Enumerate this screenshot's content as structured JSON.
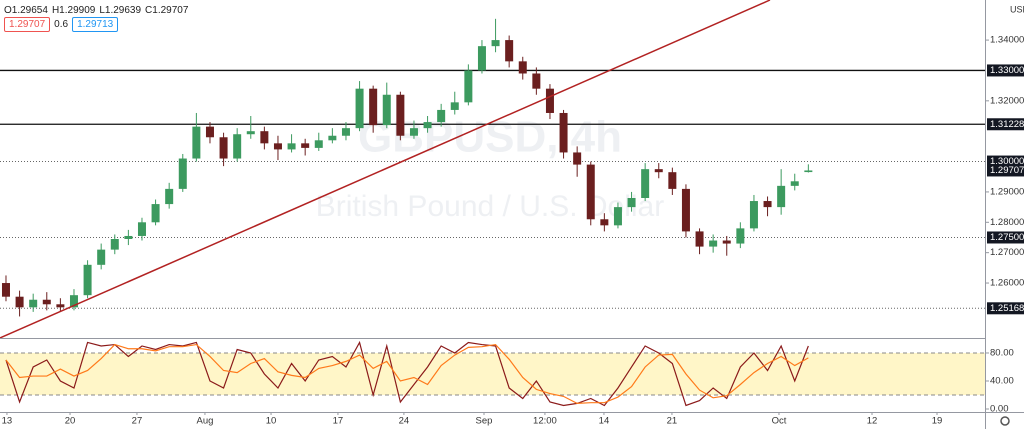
{
  "chart_data": [
    {
      "type": "candlestick",
      "symbol": "GBPUSD, 4h",
      "description": "British Pound / U.S. Dollar",
      "currency": "USD",
      "ohlc_labels": [
        "O",
        "H",
        "L",
        "C"
      ],
      "bid": 1.29707,
      "spread": 0.6,
      "ask": 1.29713,
      "up_color": "#3c9a5f",
      "down_color": "#6b1f1f",
      "grid": false,
      "open": [
        1.26,
        1.2555,
        1.252,
        1.2545,
        1.253,
        1.252,
        1.256,
        1.266,
        1.271,
        1.2745,
        1.2755,
        1.28,
        1.286,
        1.291,
        1.301,
        1.3115,
        1.308,
        1.301,
        1.309,
        1.31,
        1.306,
        1.304,
        1.306,
        1.3045,
        1.307,
        1.3085,
        1.311,
        1.324,
        1.312,
        1.322,
        1.3085,
        1.311,
        1.313,
        1.317,
        1.3195,
        1.33,
        1.338,
        1.34,
        1.333,
        1.329,
        1.324,
        1.316,
        1.303,
        1.299,
        1.281,
        1.279,
        1.285,
        1.288,
        1.2975,
        1.2965,
        1.291,
        1.277,
        1.272,
        1.274,
        1.273,
        1.278,
        1.287,
        1.285,
        1.292,
        1.29654
      ],
      "high": [
        1.2625,
        1.2575,
        1.2565,
        1.257,
        1.255,
        1.258,
        1.2675,
        1.273,
        1.276,
        1.2775,
        1.2815,
        1.2875,
        1.293,
        1.3025,
        1.316,
        1.313,
        1.3095,
        1.311,
        1.315,
        1.3115,
        1.3085,
        1.309,
        1.3075,
        1.3095,
        1.311,
        1.313,
        1.3265,
        1.325,
        1.326,
        1.323,
        1.3135,
        1.315,
        1.319,
        1.323,
        1.332,
        1.34,
        1.347,
        1.3415,
        1.3345,
        1.331,
        1.3255,
        1.317,
        1.305,
        1.3,
        1.283,
        1.2865,
        1.29,
        1.2995,
        1.2995,
        1.298,
        1.2925,
        1.278,
        1.276,
        1.2755,
        1.28,
        1.289,
        1.2885,
        1.2975,
        1.296,
        1.29909
      ],
      "low": [
        1.254,
        1.249,
        1.2505,
        1.251,
        1.2505,
        1.251,
        1.255,
        1.2645,
        1.2695,
        1.2725,
        1.274,
        1.279,
        1.2845,
        1.29,
        1.3,
        1.306,
        1.2985,
        1.3,
        1.3075,
        1.304,
        1.3005,
        1.303,
        1.302,
        1.3035,
        1.306,
        1.307,
        1.31,
        1.3095,
        1.311,
        1.307,
        1.3075,
        1.3095,
        1.3115,
        1.3155,
        1.3185,
        1.329,
        1.336,
        1.331,
        1.327,
        1.322,
        1.314,
        1.301,
        1.295,
        1.279,
        1.277,
        1.278,
        1.2835,
        1.287,
        1.2945,
        1.289,
        1.275,
        1.2695,
        1.27,
        1.269,
        1.2715,
        1.277,
        1.282,
        1.2825,
        1.2905,
        1.29639
      ],
      "close": [
        1.2555,
        1.252,
        1.2545,
        1.253,
        1.252,
        1.256,
        1.266,
        1.271,
        1.2745,
        1.2755,
        1.28,
        1.286,
        1.291,
        1.301,
        1.3115,
        1.308,
        1.301,
        1.309,
        1.31,
        1.306,
        1.304,
        1.306,
        1.3045,
        1.307,
        1.3085,
        1.311,
        1.324,
        1.312,
        1.322,
        1.3085,
        1.311,
        1.313,
        1.317,
        1.3195,
        1.33,
        1.338,
        1.34,
        1.333,
        1.329,
        1.324,
        1.316,
        1.303,
        1.299,
        1.281,
        1.279,
        1.285,
        1.288,
        1.2975,
        1.2965,
        1.291,
        1.277,
        1.272,
        1.274,
        1.273,
        1.278,
        1.287,
        1.285,
        1.292,
        1.2935,
        1.29707
      ],
      "xlim": [
        -0.44,
        71.99
      ],
      "xticks": [
        {
          "value": 0.07,
          "label": "13"
        },
        {
          "value": 4.71,
          "label": "20"
        },
        {
          "value": 9.63,
          "label": "27"
        },
        {
          "value": 14.63,
          "label": "Aug"
        },
        {
          "value": 19.49,
          "label": "10"
        },
        {
          "value": 24.41,
          "label": "17"
        },
        {
          "value": 29.26,
          "label": "24"
        },
        {
          "value": 35.15,
          "label": "Sep"
        },
        {
          "value": 39.63,
          "label": "12:00"
        },
        {
          "value": 43.97,
          "label": "14"
        },
        {
          "value": 48.97,
          "label": "21"
        },
        {
          "value": 56.84,
          "label": "Oct"
        },
        {
          "value": 63.68,
          "label": "12"
        },
        {
          "value": 68.46,
          "label": "19"
        }
      ],
      "ylim": [
        1.2419,
        1.3532
      ],
      "yticks": [
        {
          "value": 1.34,
          "label": "1.34000"
        },
        {
          "value": 1.32,
          "label": "1.32000"
        },
        {
          "value": 1.29,
          "label": "1.29000"
        },
        {
          "value": 1.28,
          "label": "1.28000"
        },
        {
          "value": 1.27,
          "label": "1.27000"
        },
        {
          "value": 1.26,
          "label": "1.26000"
        }
      ],
      "levels": [
        {
          "value": 1.33,
          "label": "1.33000",
          "style": "solid"
        },
        {
          "value": 1.31228,
          "label": "1.31228",
          "style": "solid"
        },
        {
          "value": 1.3,
          "label": "1.30000",
          "style": "dotted"
        },
        {
          "value": 1.275,
          "label": "1.27500",
          "style": "dotted"
        },
        {
          "value": 1.25168,
          "label": "1.25168",
          "style": "dotted"
        }
      ]
    },
    {
      "type": "line",
      "band": [
        20,
        80
      ],
      "band_color": "#fff6c8",
      "ylim": [
        -4.3,
        101.4
      ],
      "yticks": [
        {
          "value": 0,
          "label": "0.00"
        },
        {
          "value": 40,
          "label": "40.00"
        },
        {
          "value": 80,
          "label": "80.00"
        }
      ],
      "series": [
        {
          "color": "#8b1a1a",
          "values": [
            70,
            10,
            60,
            70,
            40,
            30,
            95,
            90,
            92,
            75,
            90,
            85,
            92,
            90,
            95,
            40,
            30,
            85,
            80,
            50,
            30,
            65,
            40,
            70,
            75,
            60,
            95,
            20,
            90,
            10,
            35,
            60,
            90,
            80,
            95,
            92,
            90,
            30,
            15,
            40,
            10,
            5,
            8,
            15,
            5,
            30,
            60,
            90,
            80,
            65,
            5,
            12,
            30,
            15,
            60,
            80,
            55,
            90,
            40,
            90
          ]
        },
        {
          "color": "#ff7a1a",
          "values": [
            70,
            45,
            47,
            47,
            57,
            47,
            55,
            72,
            92,
            86,
            86,
            83,
            89,
            89,
            92,
            75,
            55,
            52,
            65,
            72,
            53,
            48,
            45,
            58,
            62,
            68,
            77,
            58,
            68,
            40,
            45,
            35,
            62,
            77,
            88,
            89,
            92,
            71,
            45,
            28,
            22,
            18,
            8,
            9,
            9,
            17,
            32,
            60,
            77,
            78,
            50,
            27,
            16,
            19,
            35,
            52,
            65,
            75,
            62,
            73
          ]
        }
      ]
    }
  ]
}
